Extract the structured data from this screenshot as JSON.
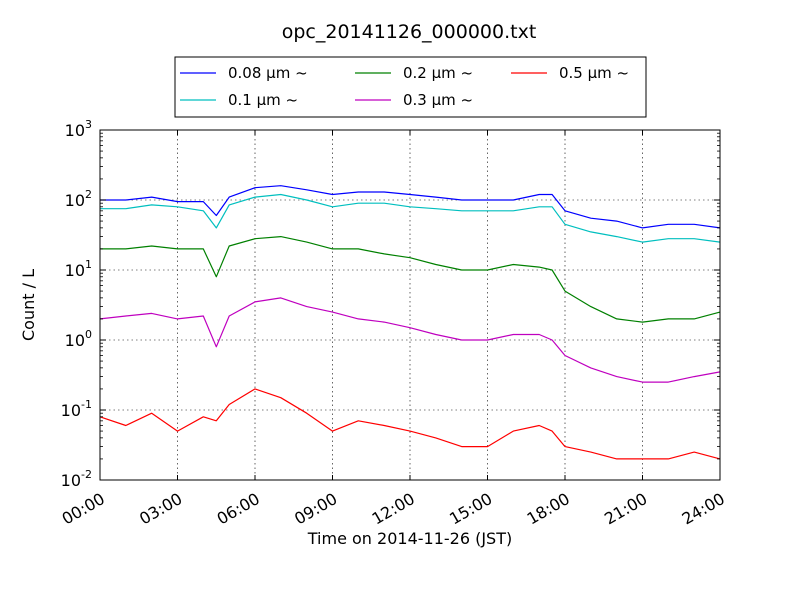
{
  "chart_data": {
    "type": "line",
    "title": "opc_20141126_000000.txt",
    "xlabel": "Time on 2014-11-26 (JST)",
    "ylabel": "Count / L",
    "y_scale": "log",
    "ylim": [
      0.01,
      1000
    ],
    "xlim": [
      "00:00",
      "24:00"
    ],
    "grid": true,
    "legend_position": "top-center",
    "x_ticks": [
      "00:00",
      "03:00",
      "06:00",
      "09:00",
      "12:00",
      "15:00",
      "18:00",
      "21:00",
      "24:00"
    ],
    "y_ticks": [
      {
        "base": "10",
        "exp": "-2"
      },
      {
        "base": "10",
        "exp": "-1"
      },
      {
        "base": "10",
        "exp": "0"
      },
      {
        "base": "10",
        "exp": "1"
      },
      {
        "base": "10",
        "exp": "2"
      },
      {
        "base": "10",
        "exp": "3"
      }
    ],
    "x": [
      "00:00",
      "01:00",
      "02:00",
      "03:00",
      "04:00",
      "04:30",
      "05:00",
      "06:00",
      "07:00",
      "08:00",
      "09:00",
      "10:00",
      "11:00",
      "12:00",
      "13:00",
      "14:00",
      "15:00",
      "16:00",
      "17:00",
      "17:30",
      "18:00",
      "19:00",
      "20:00",
      "21:00",
      "22:00",
      "23:00",
      "24:00"
    ],
    "series": [
      {
        "name": "0.08 μm ~",
        "color": "#0000ff",
        "values": [
          100,
          100,
          110,
          95,
          95,
          60,
          110,
          150,
          160,
          140,
          120,
          130,
          130,
          120,
          110,
          100,
          100,
          100,
          120,
          120,
          70,
          55,
          50,
          40,
          45,
          45,
          40
        ]
      },
      {
        "name": "0.1 μm ~",
        "color": "#00bfbf",
        "values": [
          75,
          75,
          85,
          80,
          70,
          40,
          85,
          110,
          120,
          100,
          80,
          90,
          90,
          80,
          75,
          70,
          70,
          70,
          80,
          80,
          45,
          35,
          30,
          25,
          28,
          28,
          25
        ]
      },
      {
        "name": "0.2 μm ~",
        "color": "#008000",
        "values": [
          20,
          20,
          22,
          20,
          20,
          8,
          22,
          28,
          30,
          25,
          20,
          20,
          17,
          15,
          12,
          10,
          10,
          12,
          11,
          10,
          5,
          3,
          2,
          1.8,
          2,
          2,
          2.5
        ]
      },
      {
        "name": "0.3 μm ~",
        "color": "#bf00bf",
        "values": [
          2.0,
          2.2,
          2.4,
          2.0,
          2.2,
          0.8,
          2.2,
          3.5,
          4.0,
          3.0,
          2.5,
          2.0,
          1.8,
          1.5,
          1.2,
          1.0,
          1.0,
          1.2,
          1.2,
          1.0,
          0.6,
          0.4,
          0.3,
          0.25,
          0.25,
          0.3,
          0.35
        ]
      },
      {
        "name": "0.5 μm ~",
        "color": "#ff0000",
        "values": [
          0.08,
          0.06,
          0.09,
          0.05,
          0.08,
          0.07,
          0.12,
          0.2,
          0.15,
          0.09,
          0.05,
          0.07,
          0.06,
          0.05,
          0.04,
          0.03,
          0.03,
          0.05,
          0.06,
          0.05,
          0.03,
          0.025,
          0.02,
          0.02,
          0.02,
          0.025,
          0.02
        ]
      }
    ],
    "legend_columns": 3
  }
}
